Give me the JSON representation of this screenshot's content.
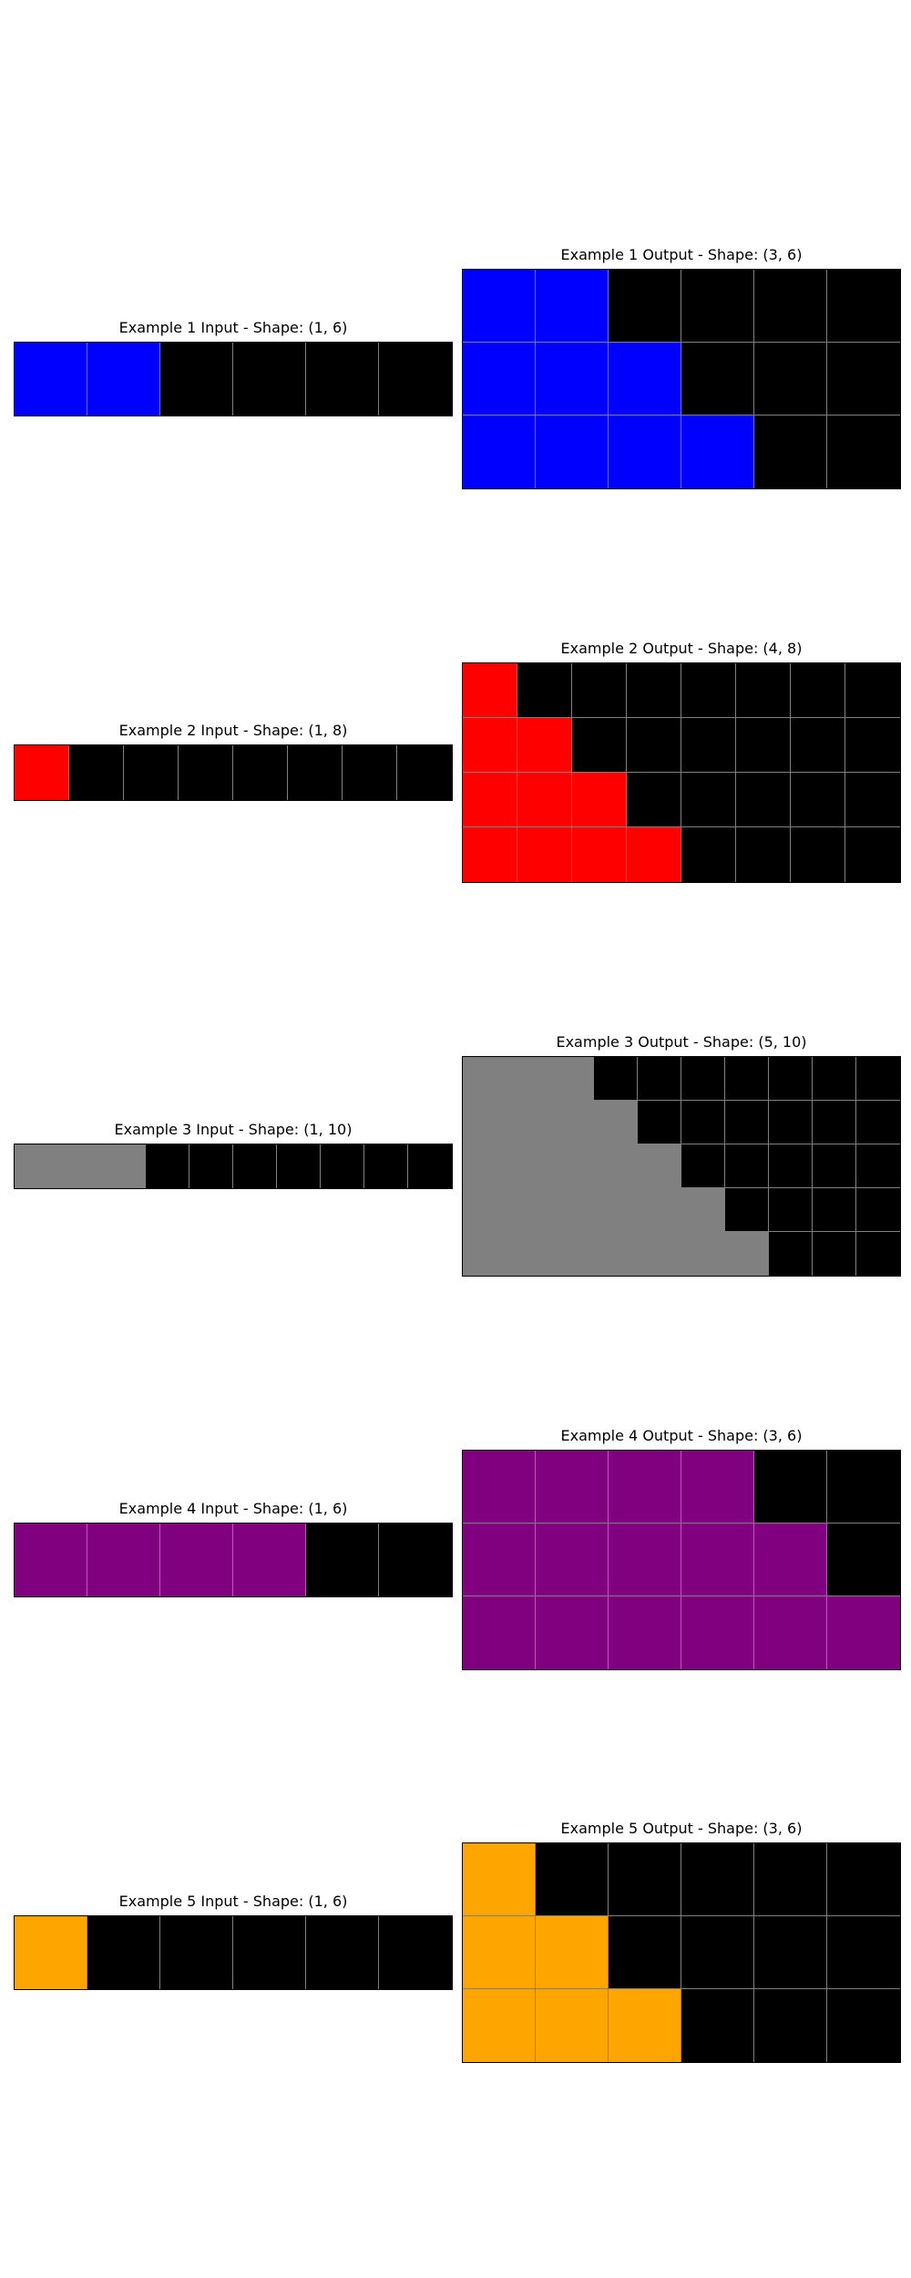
{
  "palette": {
    "0": "#000000",
    "1": "#0000ff",
    "2": "#ff0000",
    "4": "#ffa500",
    "5": "#808080",
    "6": "#800080"
  },
  "examples": [
    {
      "input": {
        "title": "Example 1 Input - Shape: (1, 6)",
        "cells": [
          [
            1,
            1,
            0,
            0,
            0,
            0
          ]
        ]
      },
      "output": {
        "title": "Example 1 Output - Shape: (3, 6)",
        "cells": [
          [
            1,
            1,
            0,
            0,
            0,
            0
          ],
          [
            1,
            1,
            1,
            0,
            0,
            0
          ],
          [
            1,
            1,
            1,
            1,
            0,
            0
          ]
        ]
      }
    },
    {
      "input": {
        "title": "Example 2 Input - Shape: (1, 8)",
        "cells": [
          [
            2,
            0,
            0,
            0,
            0,
            0,
            0,
            0
          ]
        ]
      },
      "output": {
        "title": "Example 2 Output - Shape: (4, 8)",
        "cells": [
          [
            2,
            0,
            0,
            0,
            0,
            0,
            0,
            0
          ],
          [
            2,
            2,
            0,
            0,
            0,
            0,
            0,
            0
          ],
          [
            2,
            2,
            2,
            0,
            0,
            0,
            0,
            0
          ],
          [
            2,
            2,
            2,
            2,
            0,
            0,
            0,
            0
          ]
        ]
      }
    },
    {
      "input": {
        "title": "Example 3 Input - Shape: (1, 10)",
        "cells": [
          [
            5,
            5,
            5,
            0,
            0,
            0,
            0,
            0,
            0,
            0
          ]
        ]
      },
      "output": {
        "title": "Example 3 Output - Shape: (5, 10)",
        "cells": [
          [
            5,
            5,
            5,
            0,
            0,
            0,
            0,
            0,
            0,
            0
          ],
          [
            5,
            5,
            5,
            5,
            0,
            0,
            0,
            0,
            0,
            0
          ],
          [
            5,
            5,
            5,
            5,
            5,
            0,
            0,
            0,
            0,
            0
          ],
          [
            5,
            5,
            5,
            5,
            5,
            5,
            0,
            0,
            0,
            0
          ],
          [
            5,
            5,
            5,
            5,
            5,
            5,
            5,
            0,
            0,
            0
          ]
        ]
      }
    },
    {
      "input": {
        "title": "Example 4 Input - Shape: (1, 6)",
        "cells": [
          [
            6,
            6,
            6,
            6,
            0,
            0
          ]
        ]
      },
      "output": {
        "title": "Example 4 Output - Shape: (3, 6)",
        "cells": [
          [
            6,
            6,
            6,
            6,
            0,
            0
          ],
          [
            6,
            6,
            6,
            6,
            6,
            0
          ],
          [
            6,
            6,
            6,
            6,
            6,
            6
          ]
        ]
      }
    },
    {
      "input": {
        "title": "Example 5 Input - Shape: (1, 6)",
        "cells": [
          [
            4,
            0,
            0,
            0,
            0,
            0
          ]
        ]
      },
      "output": {
        "title": "Example 5 Output - Shape: (3, 6)",
        "cells": [
          [
            4,
            0,
            0,
            0,
            0,
            0
          ],
          [
            4,
            4,
            0,
            0,
            0,
            0
          ],
          [
            4,
            4,
            4,
            0,
            0,
            0
          ]
        ]
      }
    }
  ]
}
